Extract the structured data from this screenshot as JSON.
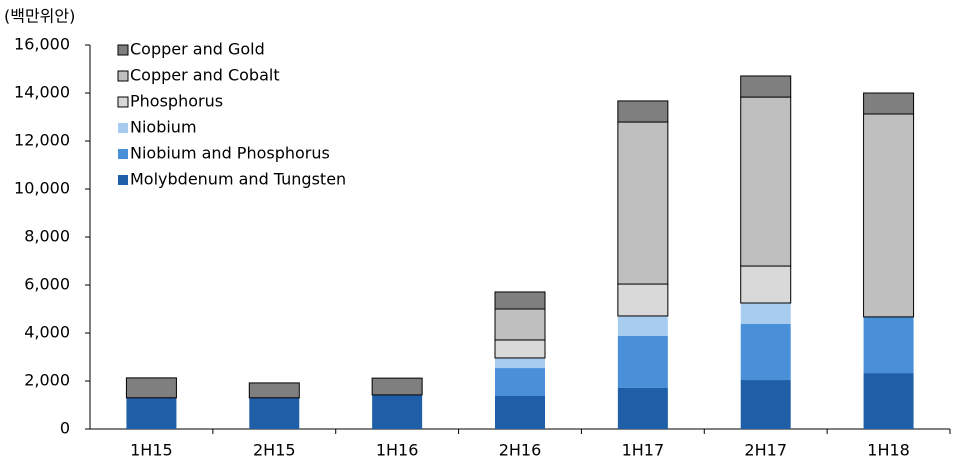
{
  "chart_data": {
    "type": "stacked_bar",
    "y_label": "(백만위안)",
    "categories": [
      "1H15",
      "2H15",
      "1H16",
      "2H16",
      "1H17",
      "2H17",
      "1H18"
    ],
    "series": [
      {
        "name": "Molybdenum and Tungsten",
        "color": "#1f5fa8",
        "values": [
          1300,
          1300,
          1420,
          1375,
          1710,
          2040,
          2330
        ]
      },
      {
        "name": "Niobium and Phosphorus",
        "color": "#4a90d9",
        "values": [
          0,
          0,
          0,
          1165,
          2165,
          2335,
          2340
        ]
      },
      {
        "name": "Niobium",
        "color": "#a8ccef",
        "values": [
          0,
          0,
          0,
          420,
          835,
          875,
          0
        ]
      },
      {
        "name": "Phosphorus",
        "color": "#d9d9d9",
        "edgecolor": "#000000",
        "values": [
          0,
          0,
          0,
          750,
          1330,
          1540,
          0
        ]
      },
      {
        "name": "Copper and Cobalt",
        "color": "#bfbfbf",
        "edgecolor": "#000000",
        "values": [
          0,
          0,
          0,
          1290,
          6750,
          7040,
          8455
        ]
      },
      {
        "name": "Copper and Gold",
        "color": "#7f7f7f",
        "edgecolor": "#000000",
        "values": [
          830,
          620,
          700,
          710,
          880,
          880,
          875
        ]
      }
    ],
    "ylim": [
      0,
      16000
    ],
    "yticks": [
      0,
      {
        "value": 2000,
        "label": "2,000"
      },
      {
        "value": 4000,
        "label": "4,000"
      },
      {
        "value": 6000,
        "label": "6,000"
      },
      {
        "value": 8000,
        "label": "8,000"
      },
      {
        "value": 10000,
        "label": "10,000"
      },
      {
        "value": 12000,
        "label": "12,000"
      },
      {
        "value": 14000,
        "label": "14,000"
      },
      {
        "value": 16000,
        "label": "16,000"
      }
    ],
    "legend": "upper left"
  }
}
